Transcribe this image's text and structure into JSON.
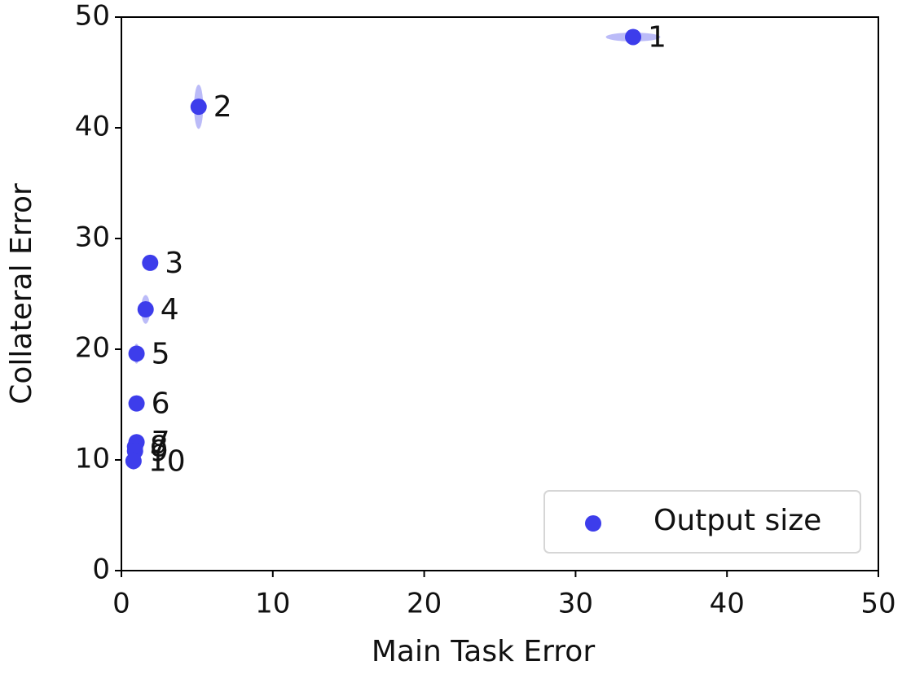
{
  "chart_data": {
    "type": "scatter",
    "x_label": "Main Task Error",
    "y_label": "Collateral Error",
    "x": [
      33.8,
      5.1,
      1.9,
      1.6,
      1.0,
      1.0,
      1.0,
      0.9,
      0.9,
      0.8
    ],
    "x_err": [
      1.8,
      0.3,
      0.2,
      0.3,
      0.2,
      0.2,
      0.2,
      0.2,
      0.2,
      0.2
    ],
    "series": [
      {
        "name": "Output size",
        "color": "#3d3deb",
        "values": [
          48.2,
          41.9,
          27.8,
          23.6,
          19.6,
          15.1,
          11.6,
          11.2,
          10.8,
          9.9
        ],
        "y_err": [
          0.4,
          2.0,
          0.3,
          1.3,
          0.9,
          0.4,
          0.5,
          0.5,
          0.6,
          0.8
        ]
      }
    ],
    "point_labels": [
      "1",
      "2",
      "3",
      "4",
      "5",
      "6",
      "7",
      "8",
      "9",
      "10"
    ],
    "xlim": [
      0,
      50
    ],
    "ylim": [
      0,
      50
    ],
    "xticks": [
      0,
      10,
      20,
      30,
      40,
      50
    ],
    "yticks": [
      0,
      10,
      20,
      30,
      40,
      50
    ],
    "legend": "lower right"
  }
}
